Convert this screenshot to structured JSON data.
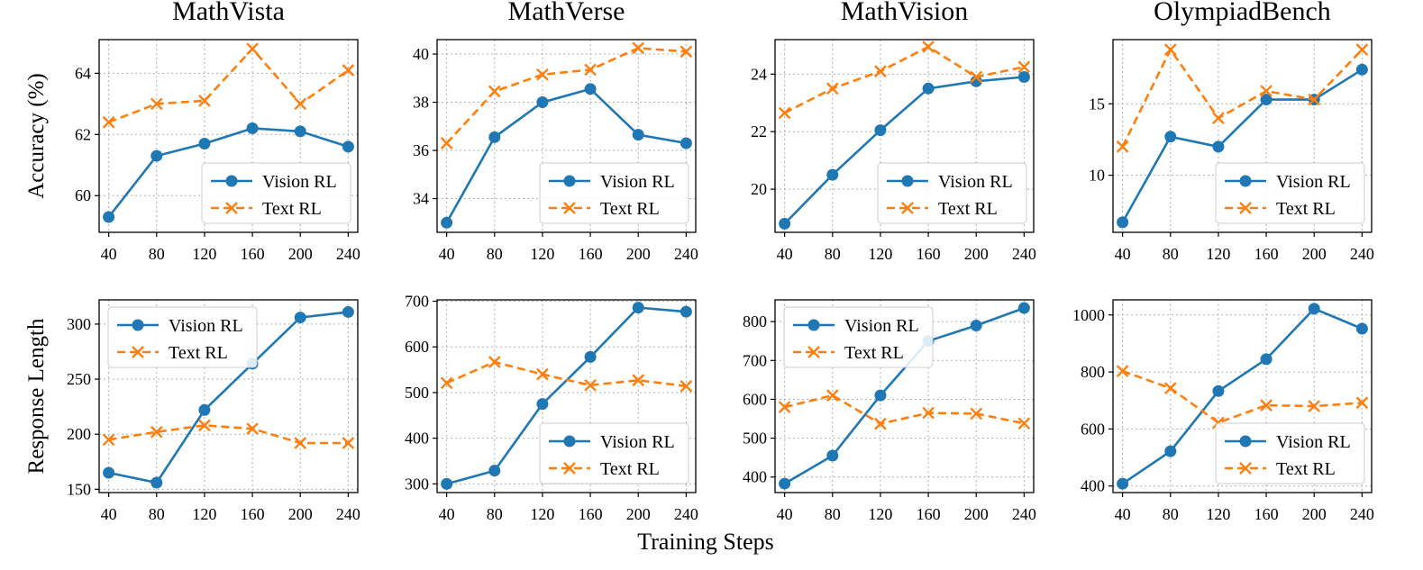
{
  "figure": {
    "xlabel": "Training Steps",
    "row_ylabels": [
      "Accuracy (%)",
      "Response Length"
    ]
  },
  "colors": {
    "vision": "#1f77b4",
    "text": "#ff7f0e",
    "grid": "#b0b0b0"
  },
  "chart_data": [
    {
      "type": "line",
      "title": "MathVista",
      "xlabel": "",
      "ylabel": "Accuracy (%)",
      "x": [
        40,
        80,
        120,
        160,
        200,
        240
      ],
      "xlim": [
        32,
        248
      ],
      "ylim": [
        58.8,
        65.1
      ],
      "yticks": [
        60,
        62,
        64
      ],
      "legend": "lower-right",
      "series": [
        {
          "name": "Vision RL",
          "values": [
            59.3,
            61.3,
            61.7,
            62.2,
            62.1,
            61.6
          ]
        },
        {
          "name": "Text RL",
          "values": [
            62.4,
            63.0,
            63.1,
            64.8,
            63.0,
            64.1
          ]
        }
      ]
    },
    {
      "type": "line",
      "title": "MathVerse",
      "xlabel": "",
      "ylabel": "",
      "x": [
        40,
        80,
        120,
        160,
        200,
        240
      ],
      "xlim": [
        32,
        248
      ],
      "ylim": [
        32.6,
        40.6
      ],
      "yticks": [
        34,
        36,
        38,
        40
      ],
      "legend": "lower-right",
      "series": [
        {
          "name": "Vision RL",
          "values": [
            33.0,
            36.55,
            38.0,
            38.55,
            36.65,
            36.3
          ]
        },
        {
          "name": "Text RL",
          "values": [
            36.3,
            38.45,
            39.15,
            39.35,
            40.25,
            40.1
          ]
        }
      ]
    },
    {
      "type": "line",
      "title": "MathVision",
      "xlabel": "",
      "ylabel": "",
      "x": [
        40,
        80,
        120,
        160,
        200,
        240
      ],
      "xlim": [
        32,
        248
      ],
      "ylim": [
        18.5,
        25.2
      ],
      "yticks": [
        20,
        22,
        24
      ],
      "legend": "lower-right",
      "series": [
        {
          "name": "Vision RL",
          "values": [
            18.8,
            20.5,
            22.05,
            23.5,
            23.75,
            23.9
          ]
        },
        {
          "name": "Text RL",
          "values": [
            22.65,
            23.5,
            24.1,
            24.95,
            23.9,
            24.25
          ]
        }
      ]
    },
    {
      "type": "line",
      "title": "OlympiadBench",
      "xlabel": "",
      "ylabel": "",
      "x": [
        40,
        80,
        120,
        160,
        200,
        240
      ],
      "xlim": [
        32,
        248
      ],
      "ylim": [
        6.0,
        19.5
      ],
      "yticks": [
        10,
        15
      ],
      "legend": "lower-right",
      "series": [
        {
          "name": "Vision RL",
          "values": [
            6.7,
            12.7,
            12.0,
            15.3,
            15.3,
            17.4
          ]
        },
        {
          "name": "Text RL",
          "values": [
            12.0,
            18.8,
            14.0,
            15.9,
            15.3,
            18.8
          ]
        }
      ]
    },
    {
      "type": "line",
      "title": "",
      "xlabel": "",
      "ylabel": "Response Length",
      "x": [
        40,
        80,
        120,
        160,
        200,
        240
      ],
      "xlim": [
        32,
        248
      ],
      "ylim": [
        147,
        322
      ],
      "yticks": [
        150,
        200,
        250,
        300
      ],
      "legend": "upper-left",
      "series": [
        {
          "name": "Vision RL",
          "values": [
            165,
            156,
            222,
            264,
            306,
            311
          ]
        },
        {
          "name": "Text RL",
          "values": [
            195,
            202,
            208,
            205,
            192,
            192
          ]
        }
      ]
    },
    {
      "type": "line",
      "title": "",
      "xlabel": "",
      "ylabel": "",
      "x": [
        40,
        80,
        120,
        160,
        200,
        240
      ],
      "xlim": [
        32,
        248
      ],
      "ylim": [
        281,
        703
      ],
      "yticks": [
        300,
        400,
        500,
        600,
        700
      ],
      "legend": "lower-right",
      "series": [
        {
          "name": "Vision RL",
          "values": [
            300,
            329,
            475,
            578,
            686,
            677
          ]
        },
        {
          "name": "Text RL",
          "values": [
            521,
            567,
            540,
            516,
            527,
            514
          ]
        }
      ]
    },
    {
      "type": "line",
      "title": "",
      "xlabel": "",
      "ylabel": "",
      "x": [
        40,
        80,
        120,
        160,
        200,
        240
      ],
      "xlim": [
        32,
        248
      ],
      "ylim": [
        360,
        856
      ],
      "yticks": [
        400,
        500,
        600,
        700,
        800
      ],
      "legend": "upper-left",
      "series": [
        {
          "name": "Vision RL",
          "values": [
            383,
            455,
            610,
            750,
            790,
            835
          ]
        },
        {
          "name": "Text RL",
          "values": [
            580,
            610,
            537,
            565,
            563,
            538
          ]
        }
      ]
    },
    {
      "type": "line",
      "title": "",
      "xlabel": "",
      "ylabel": "",
      "x": [
        40,
        80,
        120,
        160,
        200,
        240
      ],
      "xlim": [
        32,
        248
      ],
      "ylim": [
        377,
        1053
      ],
      "yticks": [
        400,
        600,
        800,
        1000
      ],
      "legend": "lower-right",
      "series": [
        {
          "name": "Vision RL",
          "values": [
            408,
            522,
            733,
            845,
            1022,
            952
          ]
        },
        {
          "name": "Text RL",
          "values": [
            803,
            743,
            622,
            683,
            680,
            692
          ]
        }
      ]
    }
  ]
}
